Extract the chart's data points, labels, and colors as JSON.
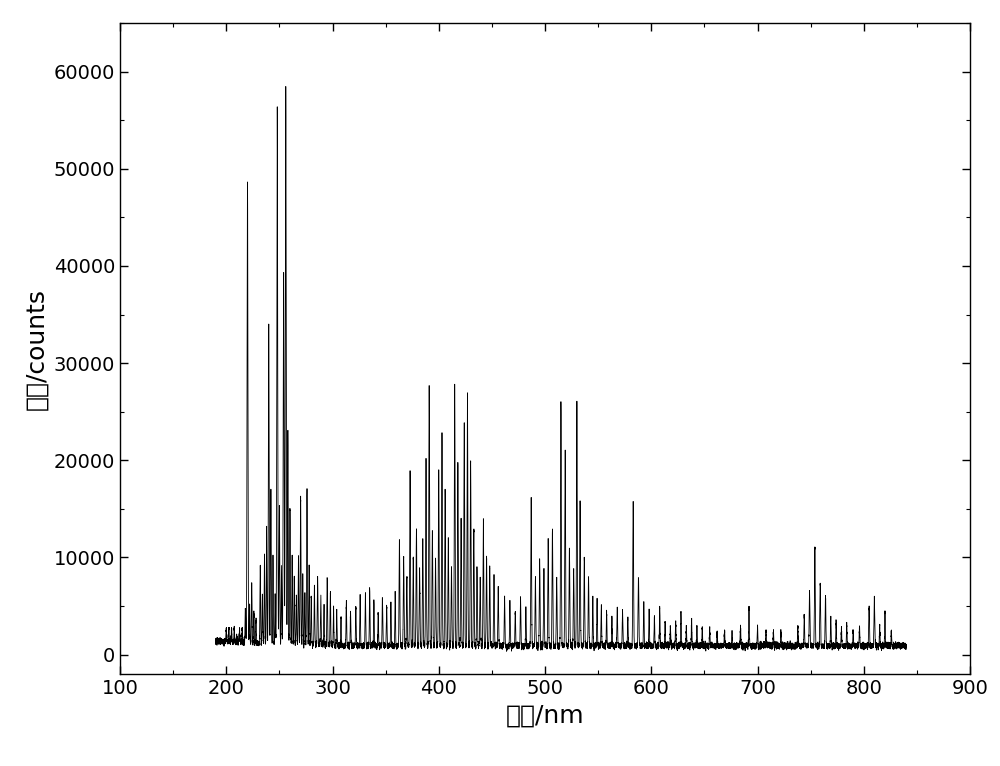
{
  "xlabel": "波长/nm",
  "ylabel": "强度/counts",
  "xlim": [
    100,
    900
  ],
  "ylim": [
    -2000,
    65000
  ],
  "xticks": [
    100,
    200,
    300,
    400,
    500,
    600,
    700,
    800,
    900
  ],
  "yticks": [
    0,
    10000,
    20000,
    30000,
    40000,
    50000,
    60000
  ],
  "line_color": "#000000",
  "bg_color": "#ffffff",
  "xlabel_fontsize": 18,
  "ylabel_fontsize": 18,
  "tick_fontsize": 14,
  "figsize": [
    10.0,
    7.66
  ]
}
